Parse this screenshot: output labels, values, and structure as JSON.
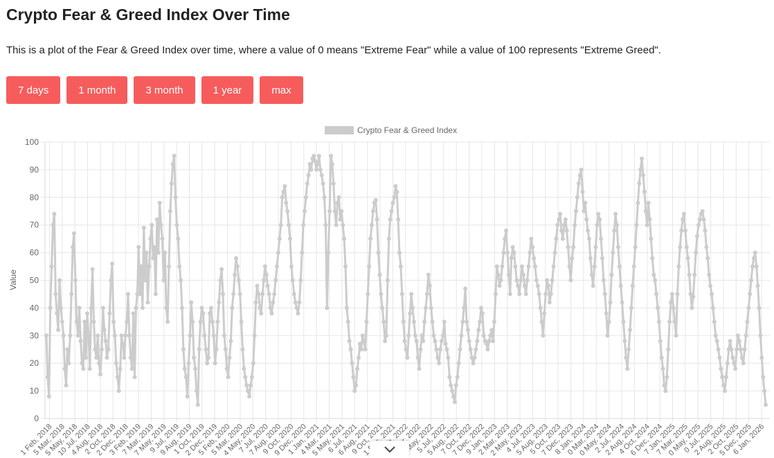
{
  "page": {
    "title": "Crypto Fear & Greed Index Over Time",
    "description": "This is a plot of the Fear & Greed Index over time, where a value of 0 means \"Extreme Fear\" while a value of 100 represents \"Extreme Greed\"."
  },
  "range_buttons": [
    "7 days",
    "1 month",
    "3 month",
    "1 year",
    "max"
  ],
  "colors": {
    "button": "#f75c5c",
    "series": "#cccccc",
    "grid": "#e6e6e6"
  },
  "scroll_icon": "chevron-down-icon",
  "chart_data": {
    "type": "line",
    "legend": {
      "label": "Crypto Fear & Greed Index",
      "position": "top"
    },
    "ylabel": "Value",
    "ylim": [
      0,
      100
    ],
    "yticks": [
      0,
      10,
      20,
      30,
      40,
      50,
      60,
      70,
      80,
      90,
      100
    ],
    "grid": true,
    "xticks": [
      "1 Feb, 2018",
      "5 Mar, 2018",
      "5 May, 2018",
      "10 Jul, 2018",
      "4 Aug, 2018",
      "2 Oct, 2018",
      "2 Dec, 2018",
      "3 Feb, 2019",
      "7 Mar, 2019",
      "7 May, 2019",
      "9 Jul, 2019",
      "9 Aug, 2019",
      "1 Oct, 2019",
      "2 Dec, 2019",
      "5 Feb, 2020",
      "5 Mar, 2020",
      "4 May, 2020",
      "7 Jul, 2020",
      "7 Aug, 2020",
      "9 Oct, 2020",
      "9 Dec, 2020",
      "1 Jan, 2021",
      "4 Mar, 2021",
      "5 May, 2021",
      "6 Jul, 2021",
      "6 Aug, 2021",
      "9 Oct, 2021",
      "1 Dec, 2021",
      "2 Feb, 2022",
      "2 Mar, 2022",
      "5 May, 2022",
      "5 Jul, 2022",
      "5 Aug, 2022",
      "7 Oct, 2022",
      "7 Dec, 2022",
      "9 Jan, 2023",
      "2 Mar, 2023",
      "2 May, 2023",
      "4 Jul, 2023",
      "5 Aug, 2023",
      "5 Oct, 2023",
      "7 Dec, 2023",
      "8 Jan, 2024",
      "0 Mar, 2024",
      "0 May, 2024",
      "2 Jul, 2024",
      "2 Aug, 2024",
      "4 Oct, 2024",
      "6 Dec, 2024",
      "7 Jan, 2025",
      "7 Mar, 2025",
      "0 May, 2025",
      "0 Jul, 2025",
      "2 Aug, 2025",
      "2 Oct, 2025",
      "5 Dec, 2025",
      "6 Jan, 2026"
    ],
    "series": [
      {
        "name": "Crypto Fear & Greed Index",
        "values": [
          30,
          15,
          8,
          40,
          55,
          70,
          74,
          45,
          38,
          32,
          50,
          40,
          35,
          30,
          18,
          12,
          25,
          20,
          30,
          45,
          62,
          67,
          50,
          35,
          30,
          40,
          28,
          20,
          18,
          35,
          22,
          38,
          30,
          18,
          40,
          54,
          35,
          25,
          22,
          30,
          20,
          16,
          25,
          40,
          32,
          28,
          22,
          25,
          38,
          50,
          56,
          35,
          30,
          20,
          15,
          10,
          18,
          30,
          27,
          22,
          30,
          35,
          45,
          30,
          22,
          18,
          38,
          15,
          40,
          45,
          62,
          45,
          55,
          40,
          69,
          50,
          60,
          42,
          55,
          65,
          70,
          58,
          62,
          45,
          72,
          60,
          78,
          70,
          65,
          50,
          60,
          40,
          35,
          55,
          75,
          85,
          92,
          95,
          80,
          70,
          65,
          55,
          50,
          40,
          25,
          18,
          15,
          8,
          20,
          30,
          42,
          35,
          22,
          18,
          10,
          5,
          25,
          35,
          40,
          38,
          30,
          25,
          20,
          22,
          38,
          40,
          35,
          30,
          20,
          25,
          35,
          42,
          50,
          54,
          45,
          30,
          25,
          18,
          15,
          22,
          28,
          40,
          45,
          52,
          58,
          55,
          50,
          45,
          35,
          25,
          18,
          15,
          12,
          10,
          8,
          12,
          15,
          20,
          30,
          42,
          48,
          45,
          40,
          38,
          45,
          50,
          55,
          52,
          48,
          45,
          40,
          38,
          42,
          45,
          50,
          55,
          60,
          65,
          70,
          80,
          82,
          84,
          78,
          75,
          70,
          65,
          55,
          50,
          45,
          42,
          40,
          38,
          42,
          50,
          60,
          70,
          75,
          80,
          85,
          88,
          92,
          90,
          94,
          95,
          93,
          90,
          92,
          95,
          90,
          88,
          85,
          80,
          70,
          40,
          60,
          75,
          95,
          92,
          85,
          75,
          70,
          78,
          80,
          72,
          75,
          70,
          65,
          55,
          40,
          35,
          28,
          25,
          20,
          15,
          10,
          12,
          18,
          22,
          27,
          25,
          30,
          28,
          25,
          35,
          45,
          55,
          65,
          70,
          75,
          78,
          79,
          72,
          60,
          52,
          45,
          40,
          35,
          28,
          30,
          50,
          65,
          72,
          75,
          78,
          80,
          84,
          82,
          72,
          60,
          55,
          45,
          35,
          28,
          25,
          22,
          30,
          38,
          45,
          40,
          35,
          30,
          28,
          22,
          18,
          25,
          30,
          28,
          35,
          40,
          45,
          52,
          48,
          40,
          35,
          30,
          28,
          25,
          22,
          20,
          25,
          28,
          30,
          35,
          27,
          25,
          22,
          15,
          12,
          10,
          8,
          6,
          12,
          15,
          20,
          25,
          30,
          35,
          40,
          47,
          35,
          32,
          28,
          25,
          22,
          20,
          22,
          25,
          28,
          32,
          35,
          40,
          38,
          30,
          28,
          27,
          25,
          28,
          30,
          32,
          28,
          35,
          45,
          55,
          52,
          48,
          50,
          55,
          60,
          65,
          68,
          60,
          52,
          45,
          58,
          62,
          60,
          55,
          50,
          48,
          45,
          50,
          55,
          52,
          48,
          45,
          50,
          55,
          60,
          65,
          62,
          58,
          55,
          50,
          48,
          45,
          40,
          35,
          30,
          38,
          45,
          50,
          48,
          42,
          45,
          50,
          55,
          60,
          65,
          70,
          72,
          74,
          68,
          65,
          70,
          72,
          68,
          62,
          55,
          50,
          58,
          62,
          70,
          75,
          80,
          85,
          88,
          90,
          82,
          75,
          78,
          72,
          68,
          65,
          58,
          52,
          48,
          55,
          62,
          70,
          74,
          72,
          65,
          58,
          50,
          45,
          38,
          30,
          35,
          42,
          52,
          60,
          68,
          74,
          70,
          62,
          55,
          48,
          42,
          35,
          28,
          22,
          18,
          25,
          32,
          40,
          48,
          55,
          62,
          70,
          78,
          85,
          90,
          94,
          88,
          82,
          75,
          70,
          78,
          72,
          65,
          58,
          52,
          50,
          45,
          40,
          35,
          28,
          22,
          18,
          12,
          10,
          15,
          25,
          35,
          42,
          45,
          40,
          35,
          30,
          45,
          55,
          62,
          68,
          72,
          74,
          68,
          62,
          58,
          52,
          45,
          40,
          44,
          52,
          60,
          66,
          70,
          72,
          74,
          75,
          72,
          68,
          62,
          58,
          52,
          48,
          45,
          40,
          35,
          30,
          28,
          25,
          22,
          18,
          15,
          12,
          10,
          15,
          20,
          25,
          28,
          25,
          22,
          20,
          18,
          25,
          30,
          28,
          25,
          22,
          20,
          25,
          30,
          35,
          40,
          45,
          50,
          55,
          58,
          60,
          55,
          48,
          40,
          30,
          22,
          15,
          10,
          5
        ]
      }
    ]
  }
}
